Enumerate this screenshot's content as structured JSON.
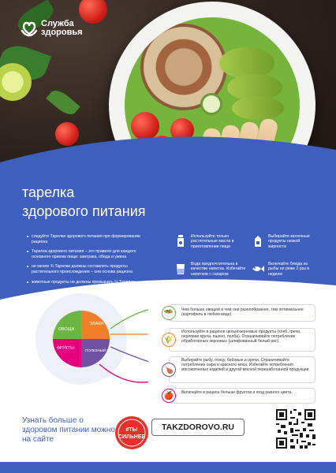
{
  "logo": {
    "line1": "Служба",
    "line2": "здоровья"
  },
  "headline": {
    "line1": "тарелка",
    "line2": "здорового питания"
  },
  "bullets": [
    "следуйте Тарелке здорового питания при формировании рациона",
    "Тарелка здорового питания – это правило для каждого основного приема пищи: завтрака, обеда и ужина",
    "не менее ¾ Тарелки должны составлять продукты растительного происхождения – они основа рациона",
    "животные продукты не должны превышать ¼ Тарелки"
  ],
  "tips": [
    {
      "text": "Используйте только растительные масла в приготовлении пищи",
      "icon": "oil-bottle-icon"
    },
    {
      "text": "Выбирайте молочные продукты низкой жирности",
      "icon": "milk-carton-icon"
    },
    {
      "text": "Вода предпочтительна в качестве напитка. Избегайте напитков с сахаром",
      "icon": "water-glass-icon"
    },
    {
      "text": "Включайте блюда из рыбы не реже 2 раз в неделю",
      "icon": "fish-icon"
    }
  ],
  "plate": {
    "segments": [
      {
        "label": "ОВОЩИ",
        "color": "#6bb543"
      },
      {
        "label": "ЗЛАКИ",
        "color": "#f07f2a"
      },
      {
        "label": "ПОЛЕЗНЫЙ БЕЛОК",
        "color": "#7052a3"
      },
      {
        "label": "ФРУКТЫ",
        "color": "#e5007e"
      }
    ]
  },
  "plate_items": [
    {
      "text": "Чем больше овощей и чем они разнообразнее, тем оптимальнее (картофель в любом виде).",
      "color": "#6bb543",
      "icon": "salad-icon"
    },
    {
      "text": "Используйте в рационе цельнозерновые продукты (хлеб, греча, перловая крупа, пшено, полба). Ограничивайте потребление обработанных зерновых (шлифованный белый рис).",
      "color": "#f07f2a",
      "icon": "grain-icon"
    },
    {
      "text": "Выбирайте рыбу, птицу, бобовые и орехи. Ограничивайте потребление сыра и красного мяса. Избегайте потребления мясокопченых изделий и другой мясной переработанной продукции.",
      "color": "#7052a3",
      "icon": "meat-icon"
    },
    {
      "text": "Включайте в рацион больше фруктов и ягод разного цвета.",
      "color": "#e5007e",
      "icon": "apple-icon"
    }
  ],
  "footer": {
    "learn_more": "Узнать больше о здоровом питании можно на сайте",
    "website": "TAKZDOROVO.RU",
    "badge_line1": "#ТЫ",
    "badge_line2": "СИЛЬНЕЕ"
  },
  "colors": {
    "brand_blue": "#3f5fbf",
    "brand_red": "#e4312b"
  }
}
